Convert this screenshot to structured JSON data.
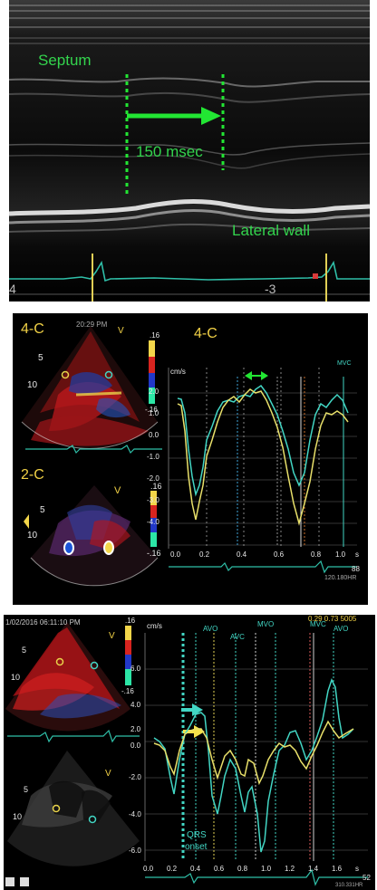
{
  "panel1": {
    "label_septum": "Septum",
    "label_interval": "150 msec",
    "label_lateral": "Lateral wall",
    "scale_left": "4",
    "scale_right": "-3",
    "colors": {
      "label": "#33d44d",
      "arrow": "#22e633",
      "ecg": "#2fbfa8"
    }
  },
  "panel2": {
    "view_4c": "4-C",
    "view_4c_plot": "4-C",
    "view_2c": "2-C",
    "timestamp": "20:29 PM",
    "probe_marker": "V",
    "probe_marker_2": "V",
    "color_bar_top": ".16",
    "color_bar_bottom": "-.16",
    "color_bar_top_2": ".16",
    "color_bar_bottom_2": "-.16",
    "depth_5": "5",
    "depth_10": "10",
    "depth_5b": "5",
    "depth_10b": "10",
    "mvc": "MVC",
    "unit": "cm/s",
    "y_ticks": [
      "2.0",
      "1.0",
      "0.0",
      "-1.0",
      "-2.0",
      "-3.0",
      "-4.0"
    ],
    "x_ticks": [
      "0.0",
      "0.2",
      "0.4",
      "0.6",
      "0.8",
      "1.0"
    ],
    "x_unit": "s",
    "hr_value": "88",
    "hr_text": "120.180HR"
  },
  "panel3": {
    "timestamp": "1/02/2016 06:11:10 PM",
    "probe_marker": "V",
    "probe_marker_2": "V",
    "color_bar_top": ".16",
    "color_bar_bottom": "-.16",
    "depth_5": "5",
    "depth_10": "10",
    "depth_5b": "5",
    "depth_10b": "10",
    "unit": "cm/s",
    "top_right_text": "0.29   0.73  5005",
    "events": [
      "AVO",
      "AVC",
      "MVO",
      "MVC",
      "AVO"
    ],
    "qrs_label_1": "QRS",
    "qrs_label_2": "onset",
    "y_ticks": [
      "6.0",
      "4.0",
      "2.0",
      "0.0",
      "-2.0",
      "-4.0",
      "-6.0"
    ],
    "x_ticks": [
      "0.0",
      "0.2",
      "0.4",
      "0.6",
      "0.8",
      "1.0",
      "1.2",
      "1.4",
      "1.6"
    ],
    "x_unit": "s",
    "hr_value": "52",
    "hr_text": "310.331HR"
  }
}
